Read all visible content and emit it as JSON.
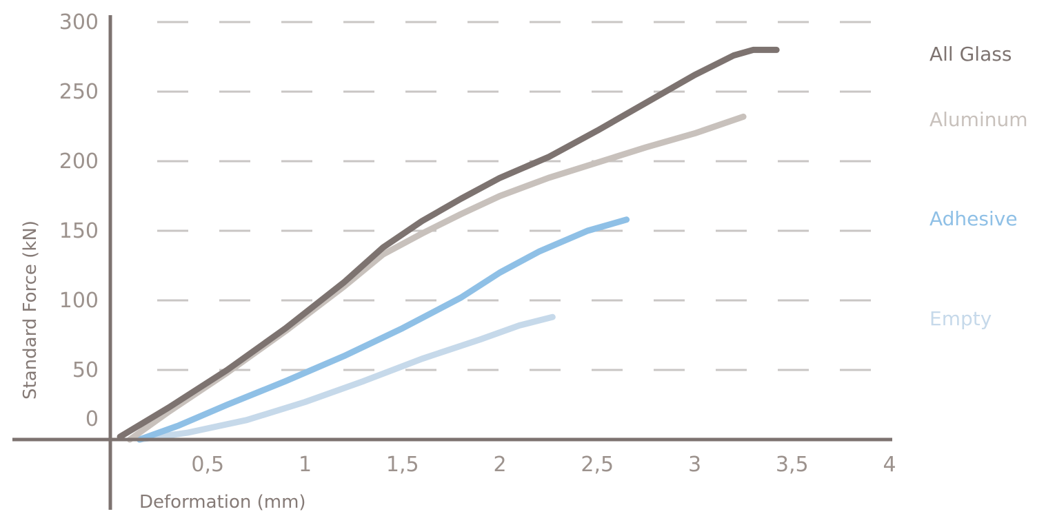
{
  "chart_data": {
    "type": "line",
    "title": "",
    "xlabel": "Deformation (mm)",
    "ylabel": "Standard Force (kN)",
    "xlim": [
      0,
      4
    ],
    "ylim": [
      0,
      300
    ],
    "x_ticks": [
      {
        "value": 0.5,
        "label": "0,5"
      },
      {
        "value": 1,
        "label": "1"
      },
      {
        "value": 1.5,
        "label": "1,5"
      },
      {
        "value": 2,
        "label": "2"
      },
      {
        "value": 2.5,
        "label": "2,5"
      },
      {
        "value": 3,
        "label": "3"
      },
      {
        "value": 3.5,
        "label": "3,5"
      },
      {
        "value": 4,
        "label": "4"
      }
    ],
    "y_ticks": [
      {
        "value": 0,
        "label": "0"
      },
      {
        "value": 50,
        "label": "50"
      },
      {
        "value": 100,
        "label": "100"
      },
      {
        "value": 150,
        "label": "150"
      },
      {
        "value": 200,
        "label": "200"
      },
      {
        "value": 250,
        "label": "250"
      },
      {
        "value": 300,
        "label": "300"
      }
    ],
    "grid": "horizontal dashed",
    "legend_position": "right",
    "series": [
      {
        "name": "All Glass",
        "color": "#7d7370",
        "x": [
          0.05,
          0.3,
          0.6,
          0.9,
          1.2,
          1.4,
          1.6,
          1.8,
          2.0,
          2.25,
          2.5,
          2.75,
          3.0,
          3.2,
          3.3,
          3.42
        ],
        "y": [
          2,
          23,
          50,
          80,
          113,
          138,
          157,
          173,
          188,
          203,
          222,
          242,
          262,
          276,
          280,
          280
        ]
      },
      {
        "name": "Aluminum",
        "color": "#c8c1bc",
        "x": [
          0.1,
          0.3,
          0.6,
          0.9,
          1.2,
          1.4,
          1.6,
          1.8,
          2.0,
          2.25,
          2.5,
          2.75,
          3.0,
          3.25
        ],
        "y": [
          0,
          20,
          48,
          78,
          110,
          133,
          148,
          162,
          175,
          188,
          199,
          210,
          220,
          232
        ]
      },
      {
        "name": "Adhesive",
        "color": "#8fc0e6",
        "x": [
          0.15,
          0.35,
          0.6,
          0.9,
          1.2,
          1.5,
          1.8,
          2.0,
          2.2,
          2.45,
          2.65
        ],
        "y": [
          0,
          10,
          25,
          42,
          60,
          80,
          102,
          120,
          135,
          150,
          158
        ]
      },
      {
        "name": "Empty",
        "color": "#c6d9ea",
        "x": [
          0.15,
          0.4,
          0.7,
          1.0,
          1.3,
          1.6,
          1.9,
          2.1,
          2.27
        ],
        "y": [
          0,
          5,
          14,
          27,
          42,
          58,
          72,
          82,
          88
        ]
      }
    ]
  }
}
